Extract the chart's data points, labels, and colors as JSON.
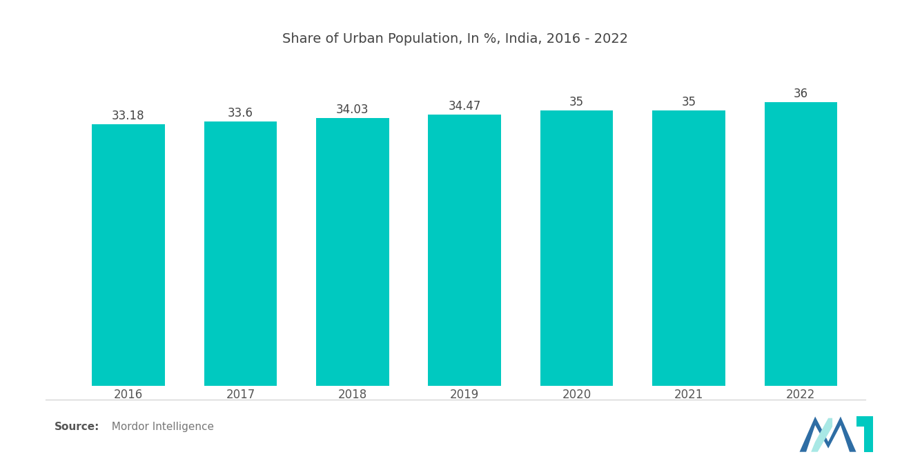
{
  "title": "Share of Urban Population, In %, India, 2016 - 2022",
  "years": [
    "2016",
    "2017",
    "2018",
    "2019",
    "2020",
    "2021",
    "2022"
  ],
  "values": [
    33.18,
    33.6,
    34.03,
    34.47,
    35,
    35,
    36
  ],
  "bar_color": "#00C9C0",
  "bar_labels": [
    "33.18",
    "33.6",
    "34.03",
    "34.47",
    "35",
    "35",
    "36"
  ],
  "background_color": "#ffffff",
  "title_fontsize": 14,
  "label_fontsize": 12,
  "tick_fontsize": 12,
  "source_bold": "Source:",
  "source_detail": "  Mordor Intelligence",
  "ylim_min": 0,
  "ylim_max": 42,
  "bar_width": 0.65,
  "logo_blue": "#2e6da4",
  "logo_teal": "#00C9C0"
}
